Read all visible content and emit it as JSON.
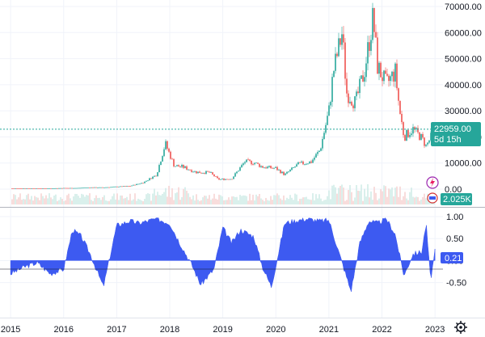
{
  "chart_data": [
    {
      "type": "candlestick",
      "title": "",
      "y_scale": "linear",
      "ylim": [
        0,
        70000
      ],
      "y_ticks": [
        "70000.00",
        "60000.00",
        "50000.00",
        "40000.00",
        "30000.00",
        "20000.00",
        "10000.00",
        "0.00"
      ],
      "last_price_label": "22959.00",
      "countdown_label": "5d 15h",
      "last_price": 22959,
      "volume_label": "2.025K",
      "colors": {
        "up": "#26a69a",
        "down": "#ef5350",
        "price_label_bg": "#26a69a",
        "volume_up": "#d1ece8",
        "volume_down": "#f7d5d4"
      },
      "x": [
        "2015-01",
        "2015-04",
        "2015-07",
        "2015-10",
        "2016-01",
        "2016-04",
        "2016-07",
        "2016-10",
        "2017-01",
        "2017-04",
        "2017-07",
        "2017-10",
        "2017-12",
        "2018-02",
        "2018-04",
        "2018-07",
        "2018-10",
        "2018-12",
        "2019-03",
        "2019-06",
        "2019-08",
        "2019-10",
        "2020-01",
        "2020-03",
        "2020-06",
        "2020-09",
        "2020-11",
        "2021-01",
        "2021-02",
        "2021-04",
        "2021-05",
        "2021-07",
        "2021-09",
        "2021-11",
        "2021-12",
        "2022-02",
        "2022-04",
        "2022-05",
        "2022-06",
        "2022-08",
        "2022-10",
        "2022-11",
        "2023-01"
      ],
      "y": [
        300,
        250,
        280,
        260,
        420,
        430,
        650,
        640,
        950,
        1200,
        2500,
        5500,
        17500,
        9000,
        8500,
        6500,
        6400,
        3700,
        4000,
        10500,
        10200,
        8500,
        8000,
        5500,
        9500,
        10500,
        15000,
        30000,
        45000,
        60000,
        37000,
        33000,
        45000,
        66000,
        47000,
        40000,
        45000,
        30000,
        20000,
        23000,
        19500,
        16500,
        22959
      ]
    },
    {
      "type": "area",
      "ylim": [
        -0.8,
        1.0
      ],
      "y_ticks": [
        "1.00",
        "0.50",
        "0.00",
        "-0.50"
      ],
      "current_value_label": "0.21",
      "current_value": 0.21,
      "color": "#3d5af1",
      "x_ticks": [
        "2015",
        "2016",
        "2017",
        "2018",
        "2019",
        "2020",
        "2021",
        "2022",
        "2023"
      ],
      "x": [
        "2015-01",
        "2015-04",
        "2015-07",
        "2015-10",
        "2016-01",
        "2016-03",
        "2016-05",
        "2016-07",
        "2016-10",
        "2017-01",
        "2017-04",
        "2017-06",
        "2017-08",
        "2017-10",
        "2018-01",
        "2018-03",
        "2018-06",
        "2018-08",
        "2018-11",
        "2019-01",
        "2019-03",
        "2019-05",
        "2019-08",
        "2019-10",
        "2019-12",
        "2020-03",
        "2020-05",
        "2020-08",
        "2020-11",
        "2021-01",
        "2021-04",
        "2021-06",
        "2021-08",
        "2021-10",
        "2021-12",
        "2022-02",
        "2022-04",
        "2022-06",
        "2022-08",
        "2022-10",
        "2022-11",
        "2022-12",
        "2023-01"
      ],
      "y": [
        -0.3,
        -0.15,
        -0.05,
        -0.3,
        -0.2,
        0.7,
        0.55,
        0.15,
        -0.6,
        0.8,
        0.9,
        0.85,
        0.9,
        0.95,
        0.85,
        0.45,
        -0.1,
        -0.55,
        -0.2,
        0.75,
        0.4,
        0.7,
        0.55,
        -0.15,
        -0.6,
        0.85,
        0.9,
        0.95,
        0.9,
        0.92,
        -0.05,
        -0.7,
        0.4,
        0.9,
        0.85,
        0.95,
        0.6,
        -0.35,
        0.15,
        0.2,
        0.85,
        -0.45,
        0.21
      ]
    }
  ]
}
